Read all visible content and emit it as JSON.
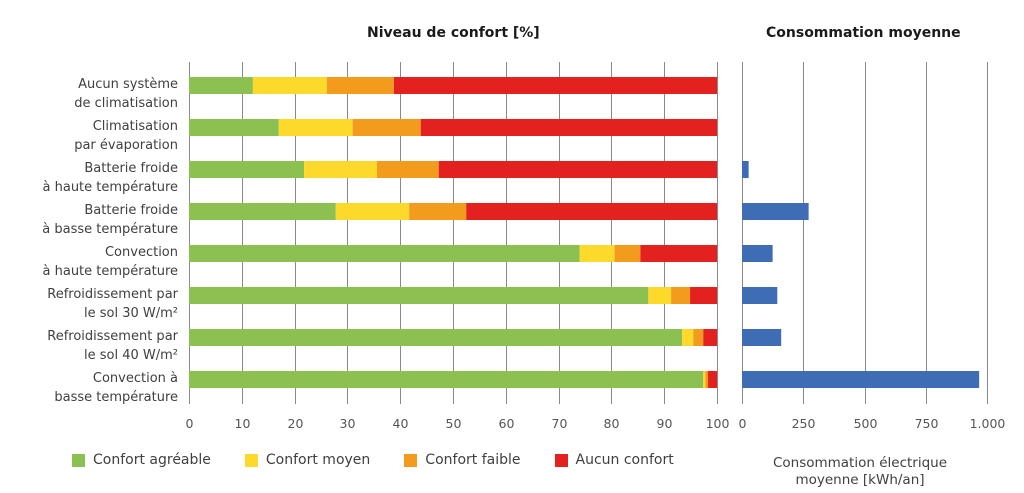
{
  "chart_data": [
    {
      "type": "bar",
      "orientation": "horizontal",
      "stacked": true,
      "title": "Niveau de confort [%]",
      "xlabel": "",
      "ylabel": "",
      "xlim": [
        0,
        100
      ],
      "xticks": [
        "0",
        "10",
        "20",
        "30",
        "40",
        "50",
        "60",
        "70",
        "80",
        "90",
        "100"
      ],
      "grid": true,
      "legend_position": "bottom",
      "categories": [
        [
          "Aucun système",
          "de climatisation"
        ],
        [
          "Climatisation",
          "par évaporation"
        ],
        [
          "Batterie froide",
          "à haute température"
        ],
        [
          "Batterie froide",
          "à basse température"
        ],
        [
          "Convection",
          "à haute température"
        ],
        [
          "Refroidissement par",
          "le sol 30 W/m²"
        ],
        [
          "Refroidissement par",
          "le sol 40 W/m²"
        ],
        [
          "Convection à",
          "basse température"
        ]
      ],
      "series": [
        {
          "name": "Confort agréable",
          "color": "#8cc050",
          "values": [
            12.1,
            17.0,
            21.8,
            27.8,
            74.0,
            87.0,
            93.4,
            97.4
          ]
        },
        {
          "name": "Confort moyen",
          "color": "#fdd92b",
          "values": [
            14.0,
            14.0,
            13.8,
            13.9,
            6.6,
            4.3,
            2.1,
            0.4
          ]
        },
        {
          "name": "Confort faible",
          "color": "#f29b1d",
          "values": [
            12.7,
            12.9,
            11.7,
            10.8,
            4.9,
            3.6,
            1.9,
            0.5
          ]
        },
        {
          "name": "Aucun confort",
          "color": "#e3221f",
          "values": [
            61.2,
            56.1,
            52.7,
            47.5,
            14.5,
            5.1,
            2.6,
            1.7
          ]
        }
      ]
    },
    {
      "type": "bar",
      "orientation": "horizontal",
      "title": "Consommation moyenne",
      "xlabel": [
        "Consommation électrique",
        "moyenne [kWh/an]"
      ],
      "xlim": [
        0,
        1000
      ],
      "xticks": [
        "0",
        "250",
        "500",
        "750",
        "1.000"
      ],
      "grid": true,
      "color": "#3f6db5",
      "values": [
        0,
        0,
        27,
        272,
        125,
        144,
        160,
        968
      ]
    }
  ]
}
